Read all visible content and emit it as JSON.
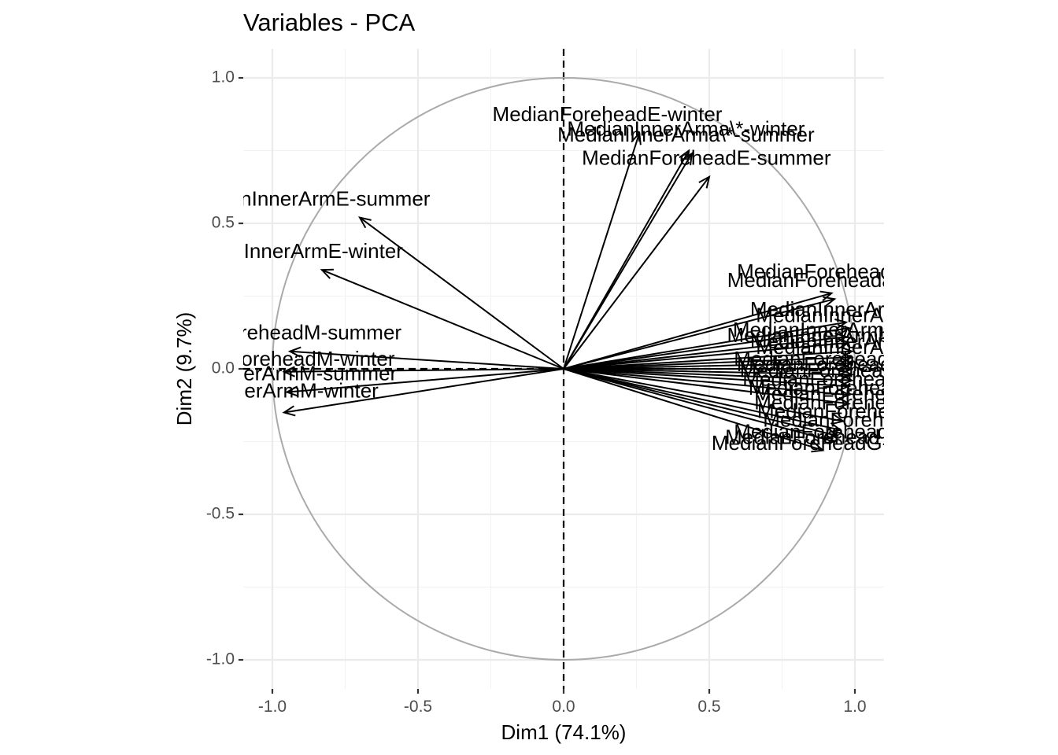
{
  "chart_data": {
    "type": "scatter",
    "subtype": "pca-variable-correlation-circle",
    "title": "Variables - PCA",
    "xlabel": "Dim1 (74.1%)",
    "ylabel": "Dim2 (9.7%)",
    "xlim": [
      -1.1,
      1.1
    ],
    "ylim": [
      -1.1,
      1.1
    ],
    "x_ticks": [
      -1.0,
      -0.5,
      0.0,
      0.5,
      1.0
    ],
    "x_tick_labels": [
      "-1.0",
      "-0.5",
      "0.0",
      "0.5",
      "1.0"
    ],
    "y_ticks": [
      -1.0,
      -0.5,
      0.0,
      0.5,
      1.0
    ],
    "y_tick_labels": [
      "-1.0",
      "-0.5",
      "0.0",
      "0.5",
      "1.0"
    ],
    "grid": true,
    "unit_circle": true,
    "variables": [
      {
        "label": "MedianForeheadE-winter",
        "x": 0.26,
        "y": 0.81,
        "lx": 0.15,
        "ly": 0.87
      },
      {
        "label": "MedianInnerArma\\*-winter",
        "x": 0.43,
        "y": 0.75,
        "lx": 0.42,
        "ly": 0.82
      },
      {
        "label": "MedianInnerArma\\*-summer",
        "x": 0.44,
        "y": 0.74,
        "lx": 0.42,
        "ly": 0.8
      },
      {
        "label": "MedianForeheadE-summer",
        "x": 0.5,
        "y": 0.66,
        "lx": 0.49,
        "ly": 0.72
      },
      {
        "label": "MedianInnerArmE-summer",
        "x": -0.7,
        "y": 0.52,
        "lx": -0.88,
        "ly": 0.58
      },
      {
        "label": "MedianInnerArmE-winter",
        "x": -0.83,
        "y": 0.34,
        "lx": -0.94,
        "ly": 0.4
      },
      {
        "label": "MedianForeheadM-summer",
        "x": -0.94,
        "y": 0.06,
        "lx": -0.99,
        "ly": 0.12
      },
      {
        "label": "MedianForeheadM-winter",
        "x": -0.96,
        "y": -0.01,
        "lx": -0.98,
        "ly": 0.03
      },
      {
        "label": "MedianInnerArmM-summer",
        "x": -0.95,
        "y": -0.08,
        "lx": -1.0,
        "ly": -0.02
      },
      {
        "label": "MedianInnerArmM-winter",
        "x": -0.96,
        "y": -0.15,
        "lx": -1.03,
        "ly": -0.08
      },
      {
        "label": "MedianForeheada",
        "x": 0.92,
        "y": 0.26,
        "lx": 0.88,
        "ly": 0.33
      },
      {
        "label": "MedianForeheada\\*",
        "x": 0.93,
        "y": 0.24,
        "lx": 0.87,
        "ly": 0.3
      },
      {
        "label": "MedianInnerArm",
        "x": 0.97,
        "y": 0.16,
        "lx": 0.9,
        "ly": 0.2
      },
      {
        "label": "MedianInnerArm",
        "x": 0.98,
        "y": 0.14,
        "lx": 0.92,
        "ly": 0.18
      },
      {
        "label": "MedianInnerArmb",
        "x": 0.97,
        "y": 0.11,
        "lx": 0.86,
        "ly": 0.13
      },
      {
        "label": "MedianInnerArmb",
        "x": 0.98,
        "y": 0.09,
        "lx": 0.84,
        "ly": 0.11
      },
      {
        "label": "MedianInnerArm",
        "x": 0.99,
        "y": 0.06,
        "lx": 0.9,
        "ly": 0.09
      },
      {
        "label": "MedianInnerArm",
        "x": 0.99,
        "y": 0.04,
        "lx": 0.92,
        "ly": 0.07
      },
      {
        "label": "MedianForehead",
        "x": 0.99,
        "y": 0.02,
        "lx": 0.85,
        "ly": 0.03
      },
      {
        "label": "MedianForehead",
        "x": 0.99,
        "y": 0.0,
        "lx": 0.86,
        "ly": 0.01
      },
      {
        "label": "MedianForehead",
        "x": 0.99,
        "y": -0.02,
        "lx": 0.87,
        "ly": -0.01
      },
      {
        "label": "MedianForehead",
        "x": 0.99,
        "y": -0.04,
        "lx": 0.88,
        "ly": -0.04
      },
      {
        "label": "MedianForehead",
        "x": 0.98,
        "y": -0.06,
        "lx": 0.9,
        "ly": -0.07
      },
      {
        "label": "MedianForehead",
        "x": 0.98,
        "y": -0.09,
        "lx": 0.92,
        "ly": -0.09
      },
      {
        "label": "MedianForeheadb",
        "x": 0.98,
        "y": -0.12,
        "lx": 0.94,
        "ly": -0.12
      },
      {
        "label": "MedianForeheadb",
        "x": 0.96,
        "y": -0.18,
        "lx": 0.95,
        "ly": -0.15
      },
      {
        "label": "MedianForehead",
        "x": 0.95,
        "y": -0.21,
        "lx": 0.95,
        "ly": -0.18
      },
      {
        "label": "MedianForehead",
        "x": 0.94,
        "y": -0.23,
        "lx": 0.85,
        "ly": -0.22
      },
      {
        "label": "MedianForehead",
        "x": 0.93,
        "y": -0.25,
        "lx": 0.82,
        "ly": -0.24
      },
      {
        "label": "MedianForeheadG-s",
        "x": 0.89,
        "y": -0.28,
        "lx": 0.83,
        "ly": -0.26
      }
    ]
  }
}
